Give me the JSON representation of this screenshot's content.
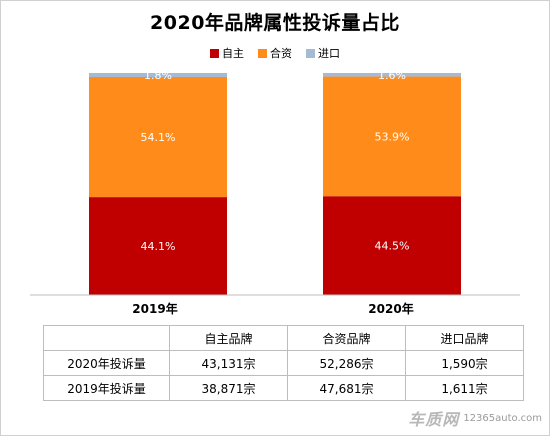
{
  "title": "2020年品牌属性投诉量占比",
  "legend": [
    {
      "label": "自主",
      "color": "#C00000"
    },
    {
      "label": "合资",
      "color": "#FF8C1A"
    },
    {
      "label": "进口",
      "color": "#A5BAD3"
    }
  ],
  "chart_data": {
    "type": "bar",
    "stacked": true,
    "percent": true,
    "categories": [
      "2019年",
      "2020年"
    ],
    "series": [
      {
        "name": "自主",
        "values": [
          44.1,
          44.5
        ],
        "labels": [
          "44.1%",
          "44.5%"
        ],
        "color": "#C00000"
      },
      {
        "name": "合资",
        "values": [
          54.1,
          53.9
        ],
        "labels": [
          "54.1%",
          "53.9%"
        ],
        "color": "#FF8C1A"
      },
      {
        "name": "进口",
        "values": [
          1.8,
          1.6
        ],
        "labels": [
          "1.8%",
          "1.6%"
        ],
        "color": "#A5BAD3"
      }
    ],
    "title": "2020年品牌属性投诉量占比",
    "legend_position": "top",
    "grid": false,
    "ylim": [
      0,
      100
    ]
  },
  "table": {
    "headers": [
      "",
      "自主品牌",
      "合资品牌",
      "进口品牌"
    ],
    "rows": [
      {
        "label": "2020年投诉量",
        "cells": [
          "43,131宗",
          "52,286宗",
          "1,590宗"
        ]
      },
      {
        "label": "2019年投诉量",
        "cells": [
          "38,871宗",
          "47,681宗",
          "1,611宗"
        ]
      }
    ]
  },
  "watermark": {
    "logo": "车质网",
    "url": "12365auto.com"
  }
}
